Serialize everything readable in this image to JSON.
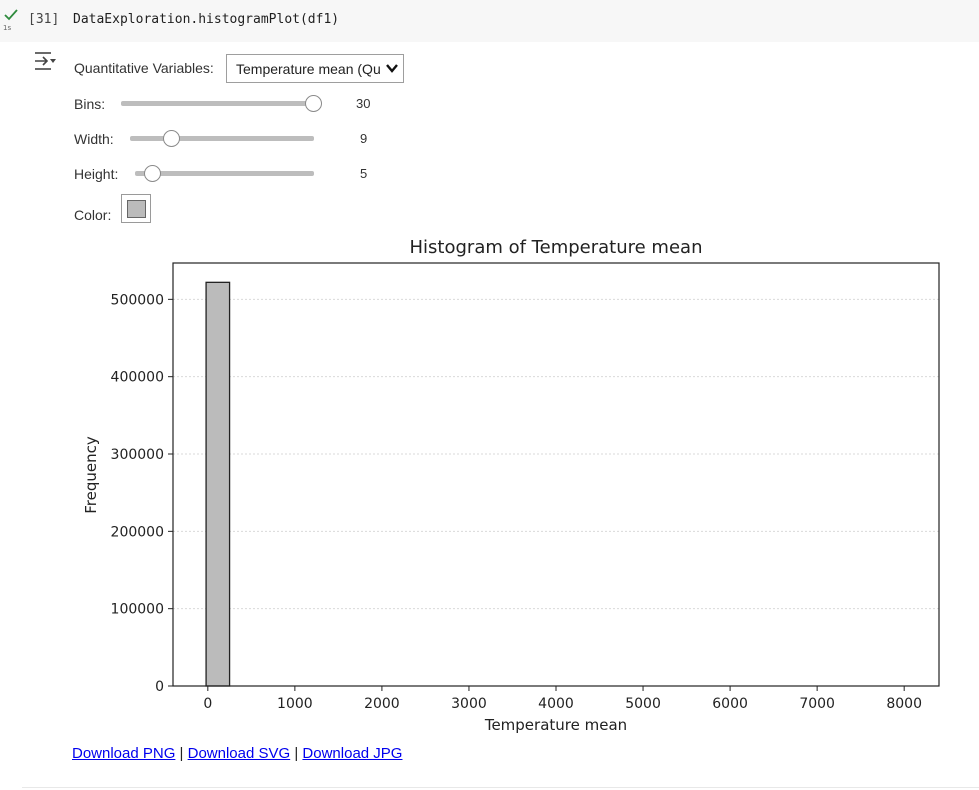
{
  "cell": {
    "execution_count": "[31]",
    "run_time": "1s",
    "code": "DataExploration.histogramPlot(df1)"
  },
  "widgets": {
    "variable_label": "Quantitative Variables:",
    "variable_value": "Temperature mean (Qu",
    "bins_label": "Bins:",
    "bins_value": "30",
    "bins_fraction": 1.0,
    "width_label": "Width:",
    "width_value": "9",
    "width_fraction": 0.23,
    "height_label": "Height:",
    "height_value": "5",
    "height_fraction": 0.1,
    "color_label": "Color:",
    "color_value": "#bbbbbb"
  },
  "chart_data": {
    "type": "bar",
    "title": "Histogram of Temperature mean",
    "xlabel": "Temperature mean",
    "ylabel": "Frequency",
    "xlim": [
      -400,
      8400
    ],
    "ylim": [
      0,
      547000
    ],
    "xticks": [
      0,
      1000,
      2000,
      3000,
      4000,
      5000,
      6000,
      7000,
      8000
    ],
    "xtick_labels": [
      "0",
      "1000",
      "2000",
      "3000",
      "4000",
      "5000",
      "6000",
      "7000",
      "8000"
    ],
    "yticks": [
      0,
      100000,
      200000,
      300000,
      400000,
      500000
    ],
    "ytick_labels": [
      "0",
      "100000",
      "200000",
      "300000",
      "400000",
      "500000"
    ],
    "bin_edges": [
      -20,
      250
    ],
    "counts": [
      522000
    ],
    "bar_color": "#bbbbbb",
    "edge_color": "#222222",
    "grid": "horizontal dotted"
  },
  "downloads": {
    "png": "Download PNG",
    "svg": "Download SVG",
    "jpg": "Download JPG",
    "separator": " | "
  }
}
